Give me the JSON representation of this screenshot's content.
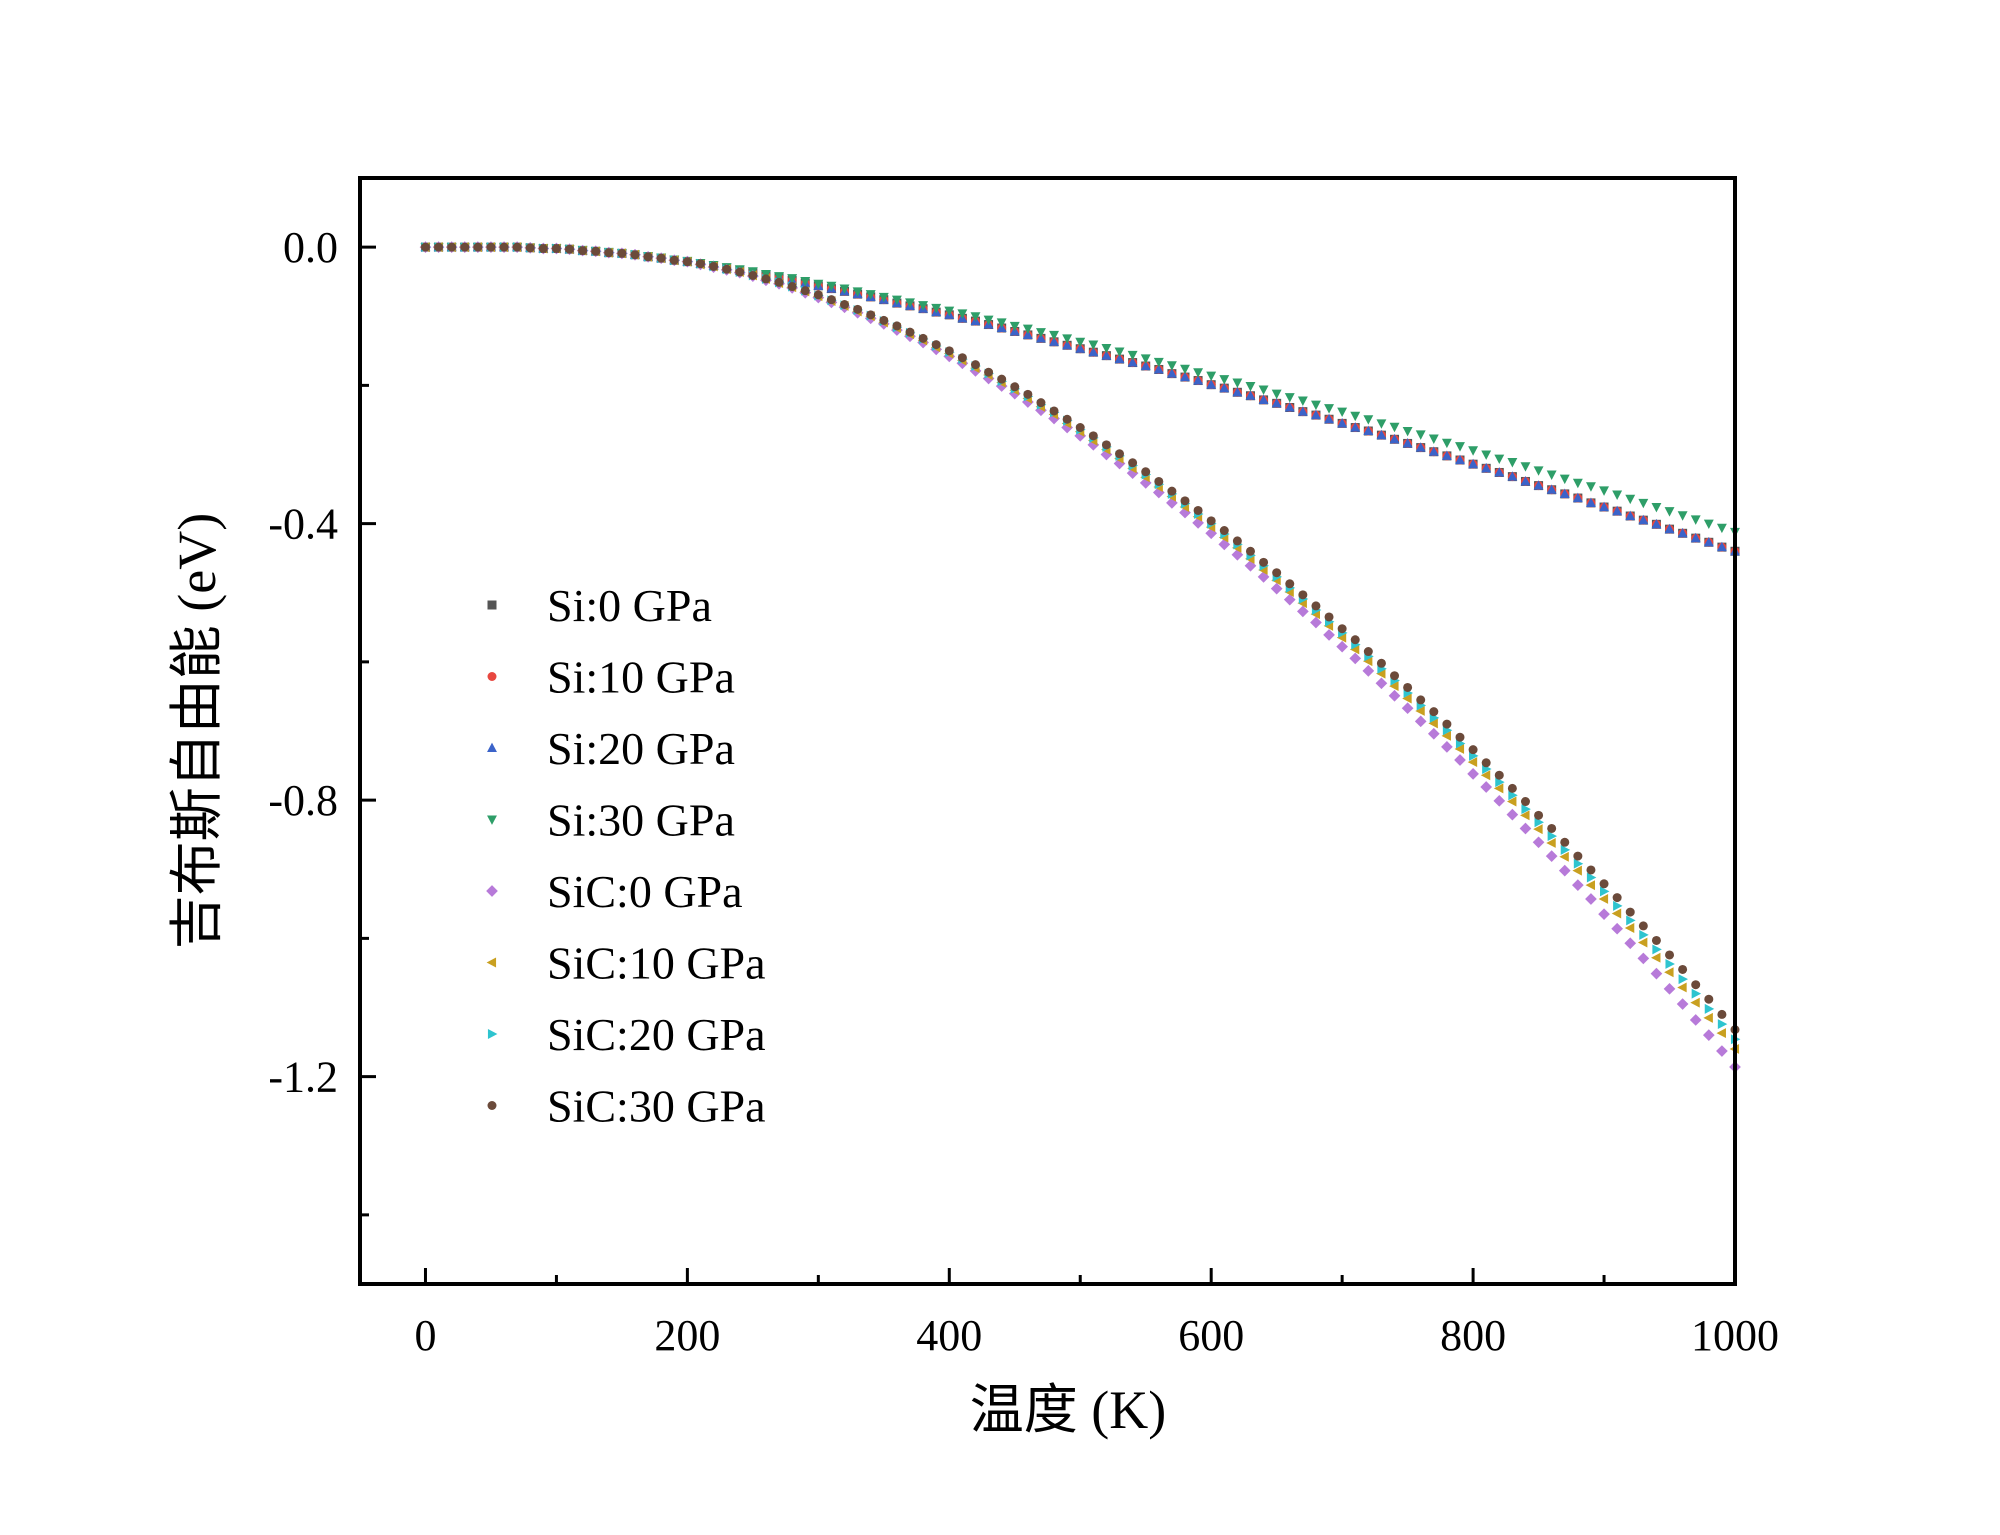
{
  "chart_data": {
    "type": "scatter",
    "title": "",
    "xlabel": "温度 (K)",
    "ylabel": "吉布斯自由能 (eV)",
    "xlim": [
      -50,
      1000
    ],
    "ylim": [
      -1.5,
      0.1
    ],
    "x_ticks": [
      0,
      200,
      400,
      600,
      800,
      1000
    ],
    "x_tick_labels": [
      "0",
      "200",
      "400",
      "600",
      "800",
      "1000"
    ],
    "y_ticks": [
      0.0,
      -0.4,
      -0.8,
      -1.2
    ],
    "y_tick_labels": [
      "0.0",
      "-0.4",
      "-0.8",
      "-1.2"
    ],
    "grid": false,
    "legend_position": "center-left",
    "x": [
      0,
      10,
      20,
      30,
      40,
      50,
      60,
      70,
      80,
      90,
      100,
      110,
      120,
      130,
      140,
      150,
      160,
      170,
      180,
      190,
      200,
      210,
      220,
      230,
      240,
      250,
      260,
      270,
      280,
      290,
      300,
      310,
      320,
      330,
      340,
      350,
      360,
      370,
      380,
      390,
      400,
      410,
      420,
      430,
      440,
      450,
      460,
      470,
      480,
      490,
      500,
      510,
      520,
      530,
      540,
      550,
      560,
      570,
      580,
      590,
      600,
      610,
      620,
      630,
      640,
      650,
      660,
      670,
      680,
      690,
      700,
      710,
      720,
      730,
      740,
      750,
      760,
      770,
      780,
      790,
      800,
      810,
      820,
      830,
      840,
      850,
      860,
      870,
      880,
      890,
      900,
      910,
      920,
      930,
      940,
      950,
      960,
      970,
      980,
      990,
      1000
    ],
    "series": [
      {
        "name": "Si:0 GPa",
        "marker": "square",
        "color": "#555555",
        "values": [
          0.0,
          0.0,
          0.0,
          0.0,
          0.0,
          -0.0,
          -0.0,
          -0.0,
          -0.001,
          -0.002,
          -0.002,
          -0.003,
          -0.005,
          -0.006,
          -0.008,
          -0.009,
          -0.011,
          -0.014,
          -0.016,
          -0.019,
          -0.021,
          -0.024,
          -0.027,
          -0.031,
          -0.034,
          -0.037,
          -0.041,
          -0.044,
          -0.048,
          -0.052,
          -0.056,
          -0.06,
          -0.064,
          -0.068,
          -0.072,
          -0.076,
          -0.081,
          -0.085,
          -0.089,
          -0.094,
          -0.098,
          -0.103,
          -0.107,
          -0.112,
          -0.117,
          -0.122,
          -0.127,
          -0.132,
          -0.137,
          -0.142,
          -0.147,
          -0.152,
          -0.157,
          -0.162,
          -0.167,
          -0.172,
          -0.177,
          -0.183,
          -0.188,
          -0.193,
          -0.199,
          -0.204,
          -0.21,
          -0.215,
          -0.221,
          -0.226,
          -0.232,
          -0.238,
          -0.243,
          -0.249,
          -0.255,
          -0.261,
          -0.266,
          -0.272,
          -0.278,
          -0.284,
          -0.29,
          -0.296,
          -0.302,
          -0.308,
          -0.314,
          -0.32,
          -0.326,
          -0.332,
          -0.339,
          -0.345,
          -0.351,
          -0.357,
          -0.363,
          -0.37,
          -0.376,
          -0.382,
          -0.389,
          -0.395,
          -0.401,
          -0.408,
          -0.414,
          -0.421,
          -0.427,
          -0.434,
          -0.44
        ]
      },
      {
        "name": "Si:10 GPa",
        "marker": "circle",
        "color": "#e8473f",
        "values": [
          0.0,
          0.0,
          0.0,
          0.0,
          0.0,
          -0.0,
          -0.0,
          -0.0,
          -0.001,
          -0.002,
          -0.002,
          -0.003,
          -0.005,
          -0.006,
          -0.008,
          -0.009,
          -0.011,
          -0.014,
          -0.016,
          -0.019,
          -0.021,
          -0.024,
          -0.027,
          -0.031,
          -0.034,
          -0.037,
          -0.041,
          -0.044,
          -0.048,
          -0.052,
          -0.056,
          -0.06,
          -0.064,
          -0.068,
          -0.072,
          -0.076,
          -0.081,
          -0.085,
          -0.089,
          -0.094,
          -0.098,
          -0.103,
          -0.107,
          -0.112,
          -0.117,
          -0.122,
          -0.127,
          -0.132,
          -0.137,
          -0.142,
          -0.147,
          -0.152,
          -0.157,
          -0.162,
          -0.167,
          -0.172,
          -0.177,
          -0.183,
          -0.188,
          -0.193,
          -0.199,
          -0.204,
          -0.21,
          -0.215,
          -0.221,
          -0.226,
          -0.232,
          -0.238,
          -0.243,
          -0.249,
          -0.255,
          -0.261,
          -0.266,
          -0.272,
          -0.278,
          -0.284,
          -0.29,
          -0.296,
          -0.302,
          -0.308,
          -0.314,
          -0.32,
          -0.326,
          -0.332,
          -0.339,
          -0.345,
          -0.351,
          -0.357,
          -0.363,
          -0.37,
          -0.376,
          -0.382,
          -0.389,
          -0.395,
          -0.401,
          -0.408,
          -0.414,
          -0.421,
          -0.427,
          -0.434,
          -0.44
        ]
      },
      {
        "name": "Si:20 GPa",
        "marker": "triangle-up",
        "color": "#3b63c9",
        "values": [
          0.0,
          0.0,
          0.0,
          0.0,
          0.0,
          -0.0,
          -0.0,
          -0.0,
          -0.001,
          -0.002,
          -0.002,
          -0.003,
          -0.005,
          -0.006,
          -0.008,
          -0.009,
          -0.011,
          -0.014,
          -0.016,
          -0.019,
          -0.021,
          -0.024,
          -0.027,
          -0.031,
          -0.034,
          -0.037,
          -0.041,
          -0.044,
          -0.048,
          -0.052,
          -0.056,
          -0.06,
          -0.064,
          -0.068,
          -0.072,
          -0.076,
          -0.081,
          -0.085,
          -0.089,
          -0.094,
          -0.098,
          -0.103,
          -0.107,
          -0.112,
          -0.117,
          -0.122,
          -0.127,
          -0.132,
          -0.137,
          -0.142,
          -0.147,
          -0.152,
          -0.157,
          -0.162,
          -0.167,
          -0.172,
          -0.177,
          -0.183,
          -0.188,
          -0.193,
          -0.199,
          -0.204,
          -0.21,
          -0.215,
          -0.221,
          -0.226,
          -0.232,
          -0.238,
          -0.243,
          -0.249,
          -0.255,
          -0.261,
          -0.266,
          -0.272,
          -0.278,
          -0.284,
          -0.29,
          -0.296,
          -0.302,
          -0.308,
          -0.314,
          -0.32,
          -0.326,
          -0.332,
          -0.339,
          -0.345,
          -0.351,
          -0.357,
          -0.363,
          -0.37,
          -0.376,
          -0.382,
          -0.389,
          -0.395,
          -0.401,
          -0.408,
          -0.414,
          -0.421,
          -0.427,
          -0.434,
          -0.44
        ]
      },
      {
        "name": "Si:30 GPa",
        "marker": "triangle-down",
        "color": "#2e9e68",
        "values": [
          0.0,
          0.0,
          0.0,
          0.0,
          0.0,
          -0.0,
          -0.0,
          -0.0,
          -0.001,
          -0.002,
          -0.002,
          -0.003,
          -0.004,
          -0.006,
          -0.007,
          -0.009,
          -0.011,
          -0.013,
          -0.015,
          -0.018,
          -0.02,
          -0.023,
          -0.026,
          -0.029,
          -0.032,
          -0.035,
          -0.039,
          -0.042,
          -0.045,
          -0.049,
          -0.053,
          -0.056,
          -0.06,
          -0.064,
          -0.068,
          -0.072,
          -0.076,
          -0.08,
          -0.084,
          -0.088,
          -0.092,
          -0.096,
          -0.1,
          -0.105,
          -0.109,
          -0.114,
          -0.118,
          -0.123,
          -0.127,
          -0.132,
          -0.137,
          -0.141,
          -0.146,
          -0.151,
          -0.156,
          -0.161,
          -0.166,
          -0.171,
          -0.176,
          -0.181,
          -0.186,
          -0.191,
          -0.196,
          -0.201,
          -0.206,
          -0.212,
          -0.217,
          -0.222,
          -0.228,
          -0.233,
          -0.238,
          -0.244,
          -0.249,
          -0.255,
          -0.26,
          -0.266,
          -0.271,
          -0.277,
          -0.283,
          -0.288,
          -0.294,
          -0.3,
          -0.306,
          -0.311,
          -0.317,
          -0.323,
          -0.329,
          -0.335,
          -0.341,
          -0.346,
          -0.352,
          -0.358,
          -0.364,
          -0.37,
          -0.376,
          -0.382,
          -0.388,
          -0.394,
          -0.4,
          -0.406,
          -0.412
        ]
      },
      {
        "name": "SiC:0 GPa",
        "marker": "diamond",
        "color": "#b77ad9",
        "values": [
          0.0,
          0.0,
          0.0,
          0.0,
          0.0,
          -0.0,
          -0.0,
          -0.0,
          -0.001,
          -0.002,
          -0.002,
          -0.003,
          -0.005,
          -0.006,
          -0.008,
          -0.009,
          -0.011,
          -0.014,
          -0.016,
          -0.019,
          -0.021,
          -0.025,
          -0.029,
          -0.033,
          -0.037,
          -0.042,
          -0.048,
          -0.053,
          -0.059,
          -0.066,
          -0.073,
          -0.08,
          -0.087,
          -0.095,
          -0.103,
          -0.111,
          -0.12,
          -0.129,
          -0.138,
          -0.148,
          -0.158,
          -0.168,
          -0.179,
          -0.19,
          -0.201,
          -0.212,
          -0.224,
          -0.236,
          -0.248,
          -0.261,
          -0.273,
          -0.286,
          -0.3,
          -0.313,
          -0.327,
          -0.341,
          -0.355,
          -0.37,
          -0.384,
          -0.399,
          -0.414,
          -0.43,
          -0.445,
          -0.461,
          -0.477,
          -0.494,
          -0.51,
          -0.527,
          -0.543,
          -0.561,
          -0.578,
          -0.595,
          -0.613,
          -0.631,
          -0.649,
          -0.667,
          -0.686,
          -0.704,
          -0.723,
          -0.742,
          -0.762,
          -0.781,
          -0.801,
          -0.821,
          -0.841,
          -0.861,
          -0.881,
          -0.902,
          -0.923,
          -0.943,
          -0.965,
          -0.986,
          -1.007,
          -1.029,
          -1.051,
          -1.073,
          -1.095,
          -1.118,
          -1.14,
          -1.163,
          -1.186
        ]
      },
      {
        "name": "SiC:10 GPa",
        "marker": "triangle-left",
        "color": "#c9a020",
        "values": [
          0.0,
          0.0,
          0.0,
          0.0,
          0.0,
          -0.0,
          -0.0,
          -0.0,
          -0.001,
          -0.002,
          -0.002,
          -0.003,
          -0.005,
          -0.006,
          -0.008,
          -0.009,
          -0.011,
          -0.014,
          -0.016,
          -0.019,
          -0.021,
          -0.025,
          -0.028,
          -0.032,
          -0.036,
          -0.041,
          -0.046,
          -0.052,
          -0.058,
          -0.064,
          -0.071,
          -0.078,
          -0.085,
          -0.093,
          -0.1,
          -0.109,
          -0.117,
          -0.126,
          -0.135,
          -0.145,
          -0.154,
          -0.164,
          -0.175,
          -0.185,
          -0.196,
          -0.207,
          -0.219,
          -0.231,
          -0.242,
          -0.255,
          -0.267,
          -0.28,
          -0.293,
          -0.306,
          -0.32,
          -0.333,
          -0.347,
          -0.361,
          -0.376,
          -0.39,
          -0.405,
          -0.42,
          -0.435,
          -0.451,
          -0.467,
          -0.482,
          -0.499,
          -0.515,
          -0.531,
          -0.548,
          -0.565,
          -0.582,
          -0.599,
          -0.617,
          -0.635,
          -0.653,
          -0.671,
          -0.689,
          -0.707,
          -0.726,
          -0.745,
          -0.764,
          -0.783,
          -0.802,
          -0.822,
          -0.842,
          -0.862,
          -0.882,
          -0.902,
          -0.923,
          -0.943,
          -0.964,
          -0.985,
          -1.006,
          -1.028,
          -1.049,
          -1.071,
          -1.093,
          -1.115,
          -1.137,
          -1.16
        ]
      },
      {
        "name": "SiC:20 GPa",
        "marker": "triangle-right",
        "color": "#2ec4cf",
        "values": [
          0.0,
          0.0,
          0.0,
          0.0,
          0.0,
          -0.0,
          -0.0,
          -0.0,
          -0.001,
          -0.002,
          -0.002,
          -0.003,
          -0.005,
          -0.006,
          -0.008,
          -0.009,
          -0.011,
          -0.014,
          -0.016,
          -0.019,
          -0.021,
          -0.024,
          -0.028,
          -0.032,
          -0.036,
          -0.041,
          -0.046,
          -0.051,
          -0.057,
          -0.063,
          -0.07,
          -0.077,
          -0.084,
          -0.091,
          -0.099,
          -0.107,
          -0.116,
          -0.124,
          -0.133,
          -0.143,
          -0.152,
          -0.162,
          -0.172,
          -0.183,
          -0.194,
          -0.205,
          -0.216,
          -0.228,
          -0.239,
          -0.251,
          -0.264,
          -0.276,
          -0.289,
          -0.302,
          -0.316,
          -0.329,
          -0.343,
          -0.357,
          -0.371,
          -0.386,
          -0.4,
          -0.415,
          -0.43,
          -0.446,
          -0.461,
          -0.477,
          -0.493,
          -0.509,
          -0.525,
          -0.542,
          -0.558,
          -0.575,
          -0.592,
          -0.61,
          -0.627,
          -0.645,
          -0.663,
          -0.681,
          -0.699,
          -0.718,
          -0.736,
          -0.755,
          -0.774,
          -0.793,
          -0.813,
          -0.832,
          -0.852,
          -0.872,
          -0.892,
          -0.912,
          -0.932,
          -0.953,
          -0.974,
          -0.995,
          -1.016,
          -1.037,
          -1.059,
          -1.08,
          -1.102,
          -1.124,
          -1.146
        ]
      },
      {
        "name": "SiC:30 GPa",
        "marker": "circle",
        "color": "#6b4a3a",
        "values": [
          0.0,
          0.0,
          0.0,
          0.0,
          0.0,
          -0.0,
          -0.0,
          -0.0,
          -0.001,
          -0.002,
          -0.002,
          -0.003,
          -0.005,
          -0.006,
          -0.008,
          -0.009,
          -0.011,
          -0.014,
          -0.016,
          -0.019,
          -0.021,
          -0.024,
          -0.028,
          -0.032,
          -0.036,
          -0.041,
          -0.046,
          -0.051,
          -0.057,
          -0.063,
          -0.069,
          -0.076,
          -0.083,
          -0.09,
          -0.098,
          -0.106,
          -0.114,
          -0.123,
          -0.132,
          -0.141,
          -0.15,
          -0.16,
          -0.17,
          -0.181,
          -0.191,
          -0.202,
          -0.213,
          -0.225,
          -0.237,
          -0.249,
          -0.261,
          -0.273,
          -0.286,
          -0.299,
          -0.312,
          -0.325,
          -0.339,
          -0.353,
          -0.367,
          -0.381,
          -0.396,
          -0.41,
          -0.425,
          -0.44,
          -0.456,
          -0.471,
          -0.487,
          -0.503,
          -0.519,
          -0.535,
          -0.552,
          -0.568,
          -0.585,
          -0.602,
          -0.62,
          -0.637,
          -0.655,
          -0.672,
          -0.69,
          -0.709,
          -0.727,
          -0.746,
          -0.764,
          -0.783,
          -0.802,
          -0.822,
          -0.841,
          -0.861,
          -0.881,
          -0.901,
          -0.921,
          -0.941,
          -0.962,
          -0.982,
          -1.003,
          -1.024,
          -1.045,
          -1.067,
          -1.088,
          -1.11,
          -1.132
        ]
      }
    ]
  }
}
